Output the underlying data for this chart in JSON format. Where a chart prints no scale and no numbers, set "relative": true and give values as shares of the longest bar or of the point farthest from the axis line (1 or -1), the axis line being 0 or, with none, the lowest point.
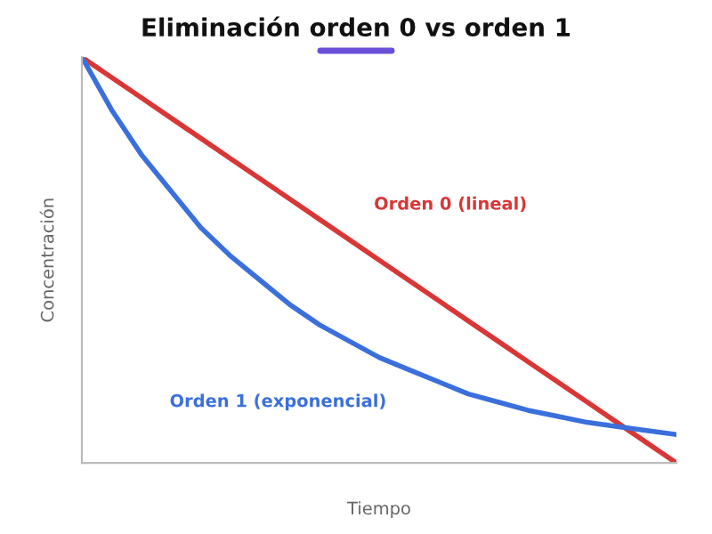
{
  "chart_data": {
    "type": "line",
    "title": "Eliminación orden 0 vs orden 1",
    "xlabel": "Tiempo",
    "ylabel": "Concentración",
    "relative": true,
    "legend": false,
    "grid": false,
    "marker": "none",
    "line_style": "solid",
    "categories": [
      null,
      null,
      null,
      null,
      null,
      null,
      null,
      null,
      null,
      null,
      null,
      null,
      null,
      null,
      null,
      null,
      null,
      null,
      null,
      null,
      null
    ],
    "series": [
      {
        "name": "Orden 0 (lineal)",
        "color": "#d93636",
        "values": [
          1,
          0.95,
          0.9,
          0.85,
          0.8,
          0.75,
          0.7,
          0.65,
          0.6,
          0.55,
          0.5,
          0.45,
          0.4,
          0.35,
          0.3,
          0.25,
          0.2,
          0.15,
          0.1,
          0.05,
          0
        ]
      },
      {
        "name": "Orden 1 (exponencial)",
        "color": "#3a6fdc",
        "values": [
          1,
          0.87,
          0.76,
          0.67,
          0.58,
          0.51,
          0.45,
          0.39,
          0.34,
          0.3,
          0.26,
          0.23,
          0.2,
          0.17,
          0.15,
          0.13,
          0.115,
          0.1,
          0.09,
          0.08,
          0.07
        ]
      }
    ]
  }
}
